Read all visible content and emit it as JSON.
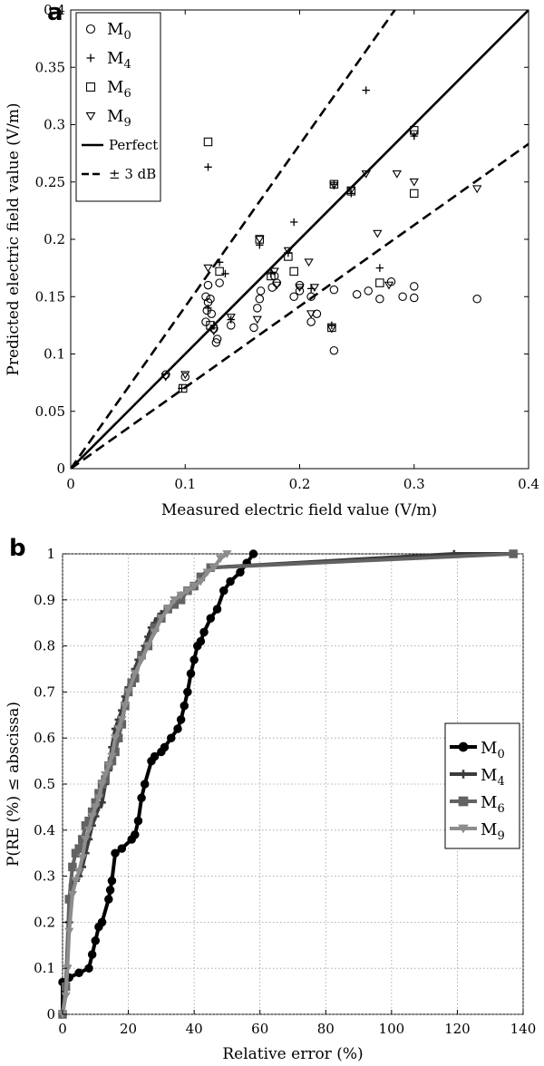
{
  "chart_data": [
    {
      "panel": "a",
      "type": "scatter",
      "xlabel": "Measured electric field value (V/m)",
      "ylabel": "Predicted electric field value (V/m)",
      "xlim": [
        0,
        0.4
      ],
      "ylim": [
        0,
        0.4
      ],
      "xticks": [
        "0",
        "0.1",
        "0.2",
        "0.3",
        "0.4"
      ],
      "yticks": [
        "0",
        "0.05",
        "0.1",
        "0.15",
        "0.2",
        "0.25",
        "0.3",
        "0.35",
        "0.4"
      ],
      "grid": false,
      "legend_position": "top-left",
      "legend": [
        {
          "base": "M",
          "sub": "0",
          "marker": "circle"
        },
        {
          "base": "M",
          "sub": "4",
          "marker": "plus"
        },
        {
          "base": "M",
          "sub": "6",
          "marker": "square"
        },
        {
          "base": "M",
          "sub": "9",
          "marker": "triangle-down"
        },
        {
          "label": "Perfect",
          "line": "solid"
        },
        {
          "label": "± 3 dB",
          "line": "dashed"
        }
      ],
      "lines": [
        {
          "name": "Perfect",
          "style": "solid",
          "slope": 1
        },
        {
          "name": "+3 dB",
          "style": "dashed",
          "slope": 1.4125
        },
        {
          "name": "-3 dB",
          "style": "dashed",
          "slope": 0.708
        }
      ],
      "series": [
        {
          "name": "M0",
          "marker": "circle",
          "points": [
            [
              0.083,
              0.082
            ],
            [
              0.1,
              0.08
            ],
            [
              0.118,
              0.128
            ],
            [
              0.118,
              0.15
            ],
            [
              0.119,
              0.138
            ],
            [
              0.12,
              0.145
            ],
            [
              0.12,
              0.16
            ],
            [
              0.122,
              0.148
            ],
            [
              0.123,
              0.135
            ],
            [
              0.125,
              0.122
            ],
            [
              0.127,
              0.11
            ],
            [
              0.128,
              0.113
            ],
            [
              0.13,
              0.162
            ],
            [
              0.14,
              0.125
            ],
            [
              0.16,
              0.123
            ],
            [
              0.163,
              0.14
            ],
            [
              0.165,
              0.148
            ],
            [
              0.166,
              0.155
            ],
            [
              0.176,
              0.158
            ],
            [
              0.178,
              0.168
            ],
            [
              0.18,
              0.162
            ],
            [
              0.195,
              0.15
            ],
            [
              0.2,
              0.155
            ],
            [
              0.2,
              0.16
            ],
            [
              0.21,
              0.128
            ],
            [
              0.21,
              0.15
            ],
            [
              0.215,
              0.135
            ],
            [
              0.23,
              0.103
            ],
            [
              0.23,
              0.156
            ],
            [
              0.25,
              0.152
            ],
            [
              0.26,
              0.155
            ],
            [
              0.27,
              0.148
            ],
            [
              0.28,
              0.163
            ],
            [
              0.29,
              0.15
            ],
            [
              0.3,
              0.149
            ],
            [
              0.3,
              0.159
            ],
            [
              0.355,
              0.148
            ]
          ]
        },
        {
          "name": "M4",
          "marker": "plus",
          "points": [
            [
              0.097,
              0.07
            ],
            [
              0.12,
              0.263
            ],
            [
              0.12,
              0.14
            ],
            [
              0.125,
              0.125
            ],
            [
              0.13,
              0.18
            ],
            [
              0.135,
              0.17
            ],
            [
              0.14,
              0.13
            ],
            [
              0.165,
              0.195
            ],
            [
              0.175,
              0.17
            ],
            [
              0.19,
              0.188
            ],
            [
              0.195,
              0.215
            ],
            [
              0.21,
              0.157
            ],
            [
              0.228,
              0.125
            ],
            [
              0.23,
              0.248
            ],
            [
              0.245,
              0.24
            ],
            [
              0.258,
              0.33
            ],
            [
              0.27,
              0.175
            ],
            [
              0.3,
              0.29
            ]
          ]
        },
        {
          "name": "M6",
          "marker": "square",
          "points": [
            [
              0.098,
              0.07
            ],
            [
              0.12,
              0.285
            ],
            [
              0.122,
              0.125
            ],
            [
              0.13,
              0.172
            ],
            [
              0.165,
              0.2
            ],
            [
              0.175,
              0.168
            ],
            [
              0.19,
              0.185
            ],
            [
              0.195,
              0.172
            ],
            [
              0.228,
              0.123
            ],
            [
              0.23,
              0.248
            ],
            [
              0.245,
              0.242
            ],
            [
              0.27,
              0.162
            ],
            [
              0.3,
              0.24
            ],
            [
              0.3,
              0.295
            ]
          ]
        },
        {
          "name": "M9",
          "marker": "triangle-down",
          "points": [
            [
              0.083,
              0.08
            ],
            [
              0.1,
              0.082
            ],
            [
              0.12,
              0.175
            ],
            [
              0.125,
              0.12
            ],
            [
              0.14,
              0.132
            ],
            [
              0.163,
              0.13
            ],
            [
              0.165,
              0.2
            ],
            [
              0.178,
              0.172
            ],
            [
              0.18,
              0.16
            ],
            [
              0.19,
              0.19
            ],
            [
              0.2,
              0.158
            ],
            [
              0.208,
              0.18
            ],
            [
              0.21,
              0.135
            ],
            [
              0.213,
              0.158
            ],
            [
              0.228,
              0.122
            ],
            [
              0.23,
              0.247
            ],
            [
              0.245,
              0.243
            ],
            [
              0.258,
              0.257
            ],
            [
              0.268,
              0.205
            ],
            [
              0.278,
              0.16
            ],
            [
              0.285,
              0.257
            ],
            [
              0.3,
              0.25
            ],
            [
              0.3,
              0.292
            ],
            [
              0.355,
              0.244
            ]
          ]
        }
      ]
    },
    {
      "panel": "b",
      "type": "line",
      "xlabel": "Relative error (%)",
      "ylabel": "P(RE (%) ≤ abscissa)",
      "xlim": [
        0,
        140
      ],
      "ylim": [
        0,
        1
      ],
      "xticks": [
        "0",
        "20",
        "40",
        "60",
        "80",
        "100",
        "120",
        "140"
      ],
      "yticks": [
        "0",
        "0.1",
        "0.2",
        "0.3",
        "0.4",
        "0.5",
        "0.6",
        "0.7",
        "0.8",
        "0.9",
        "1"
      ],
      "grid": true,
      "legend_position": "right",
      "series": [
        {
          "name": "M0",
          "base": "M",
          "sub": "0",
          "color": "#000000",
          "marker": "circle",
          "x": [
            0,
            0,
            2,
            5,
            8,
            9,
            10,
            11,
            12,
            14,
            14.5,
            15,
            16,
            18,
            21,
            22,
            23,
            24,
            25,
            27,
            28,
            30,
            31,
            33,
            35,
            36,
            37,
            38,
            39,
            40,
            41,
            42,
            43,
            45,
            47,
            49,
            51,
            54,
            56,
            58
          ],
          "y": [
            0,
            0.07,
            0.08,
            0.09,
            0.1,
            0.13,
            0.16,
            0.19,
            0.2,
            0.25,
            0.27,
            0.29,
            0.35,
            0.36,
            0.38,
            0.39,
            0.42,
            0.47,
            0.5,
            0.55,
            0.56,
            0.57,
            0.58,
            0.6,
            0.62,
            0.64,
            0.67,
            0.7,
            0.74,
            0.77,
            0.8,
            0.81,
            0.83,
            0.86,
            0.88,
            0.92,
            0.94,
            0.96,
            0.98,
            1.0
          ]
        },
        {
          "name": "M4",
          "base": "M",
          "sub": "4",
          "color": "#3b3b3b",
          "marker": "plus",
          "x": [
            0,
            1,
            2,
            3,
            4,
            5,
            6,
            7,
            8,
            9,
            10,
            11,
            12,
            13,
            14,
            15,
            16,
            17,
            18,
            19,
            20,
            21,
            22,
            23,
            24,
            25,
            26,
            27,
            28,
            29,
            30,
            32,
            34,
            36,
            38,
            40,
            42,
            45,
            119,
            137
          ],
          "y": [
            0,
            0.06,
            0.2,
            0.28,
            0.29,
            0.3,
            0.32,
            0.35,
            0.38,
            0.41,
            0.43,
            0.45,
            0.46,
            0.5,
            0.53,
            0.58,
            0.62,
            0.64,
            0.66,
            0.69,
            0.71,
            0.72,
            0.75,
            0.77,
            0.78,
            0.8,
            0.82,
            0.84,
            0.85,
            0.86,
            0.87,
            0.88,
            0.89,
            0.91,
            0.92,
            0.93,
            0.95,
            0.97,
            1.0,
            1.0
          ]
        },
        {
          "name": "M6",
          "base": "M",
          "sub": "6",
          "color": "#626262",
          "marker": "square",
          "x": [
            0,
            1,
            2,
            3,
            4,
            5,
            6,
            7,
            8,
            9,
            10,
            11,
            12,
            13,
            14,
            15,
            16,
            17,
            18,
            19,
            20,
            21,
            22,
            24,
            26,
            28,
            30,
            32,
            34,
            36,
            38,
            40,
            42,
            45,
            137
          ],
          "y": [
            0,
            0.06,
            0.25,
            0.32,
            0.35,
            0.36,
            0.38,
            0.41,
            0.42,
            0.44,
            0.46,
            0.48,
            0.5,
            0.51,
            0.54,
            0.55,
            0.57,
            0.6,
            0.63,
            0.67,
            0.7,
            0.72,
            0.73,
            0.78,
            0.8,
            0.84,
            0.86,
            0.88,
            0.89,
            0.9,
            0.92,
            0.93,
            0.95,
            0.97,
            1.0
          ]
        },
        {
          "name": "M9",
          "base": "M",
          "sub": "9",
          "color": "#8d8d8d",
          "marker": "triangle-down",
          "x": [
            0,
            1,
            1.5,
            2,
            3,
            4,
            5,
            6,
            7,
            8,
            9,
            10,
            11,
            12,
            13,
            14,
            15,
            16,
            17,
            18,
            19,
            20,
            22,
            24,
            26,
            28,
            30,
            32,
            34,
            36,
            38,
            40,
            42,
            44,
            46,
            48,
            50
          ],
          "y": [
            0,
            0.04,
            0.1,
            0.18,
            0.26,
            0.29,
            0.31,
            0.34,
            0.38,
            0.4,
            0.43,
            0.45,
            0.47,
            0.5,
            0.52,
            0.54,
            0.56,
            0.6,
            0.62,
            0.64,
            0.67,
            0.7,
            0.74,
            0.77,
            0.8,
            0.83,
            0.86,
            0.88,
            0.9,
            0.91,
            0.92,
            0.93,
            0.94,
            0.96,
            0.97,
            0.99,
            1.0
          ]
        }
      ]
    }
  ]
}
